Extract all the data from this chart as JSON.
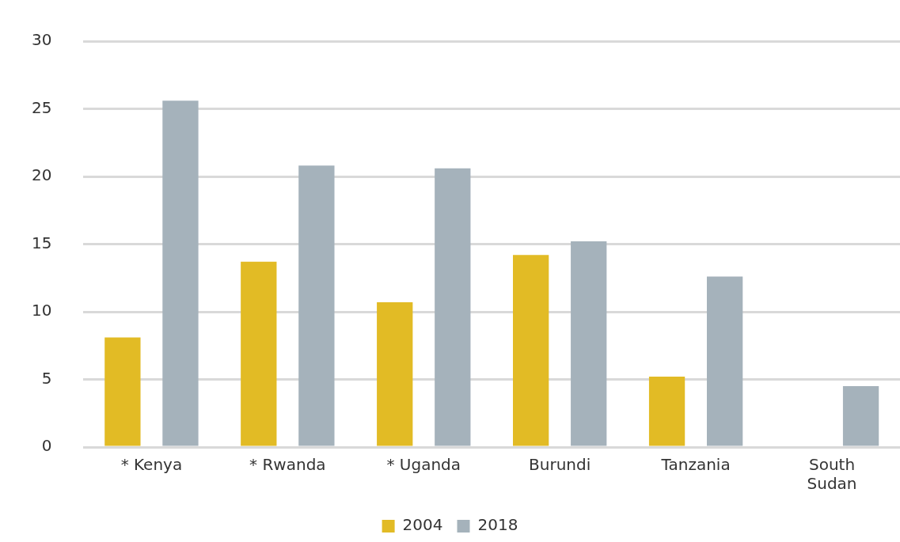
{
  "chart_data": {
    "type": "bar",
    "categories": [
      "* Kenya",
      "* Rwanda",
      "* Uganda",
      "Burundi",
      "Tanzania",
      "South Sudan"
    ],
    "series": [
      {
        "name": "2004",
        "color": "#e2bb25",
        "values": [
          8.1,
          13.7,
          10.7,
          14.2,
          5.2,
          null
        ]
      },
      {
        "name": "2018",
        "color": "#a5b2bb",
        "values": [
          25.6,
          20.8,
          20.6,
          15.2,
          12.6,
          4.5
        ]
      }
    ],
    "ylim": [
      0,
      30
    ],
    "yticks": [
      0,
      5,
      10,
      15,
      20,
      25,
      30
    ],
    "grid": "y",
    "legend": "bottom"
  }
}
